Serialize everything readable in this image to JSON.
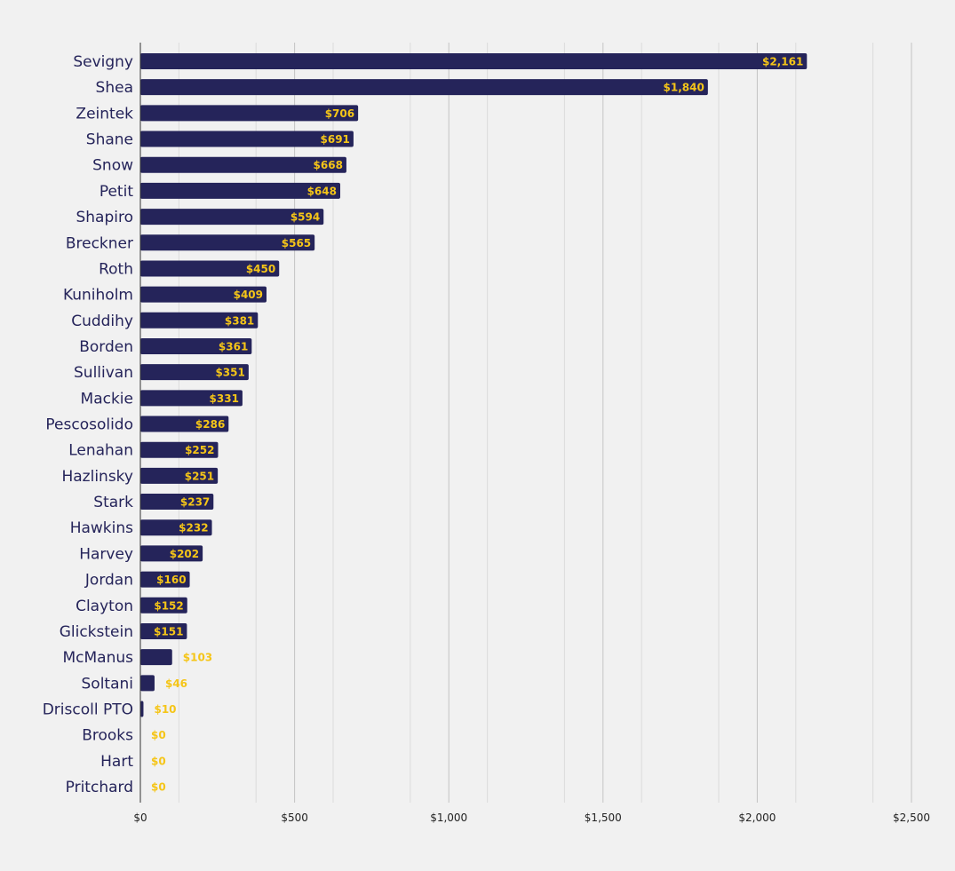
{
  "chart_data": {
    "type": "bar",
    "orientation": "horizontal",
    "categories": [
      "Sevigny",
      "Shea",
      "Zeintek",
      "Shane",
      "Snow",
      "Petit",
      "Shapiro",
      "Breckner",
      "Roth",
      "Kuniholm",
      "Cuddihy",
      "Borden",
      "Sullivan",
      "Mackie",
      "Pescosolido",
      "Lenahan",
      "Hazlinsky",
      "Stark",
      "Hawkins",
      "Harvey",
      "Jordan",
      "Clayton",
      "Glickstein",
      "McManus",
      "Soltani",
      "Driscoll PTO",
      "Brooks",
      "Hart",
      "Pritchard"
    ],
    "values": [
      2161,
      1840,
      706,
      691,
      668,
      648,
      594,
      565,
      450,
      409,
      381,
      361,
      351,
      331,
      286,
      252,
      251,
      237,
      232,
      202,
      160,
      152,
      151,
      103,
      46,
      10,
      0,
      0,
      0
    ],
    "value_labels": [
      "$2,161",
      "$1,840",
      "$706",
      "$691",
      "$668",
      "$648",
      "$594",
      "$565",
      "$450",
      "$409",
      "$381",
      "$361",
      "$351",
      "$331",
      "$286",
      "$252",
      "$251",
      "$237",
      "$232",
      "$202",
      "$160",
      "$152",
      "$151",
      "$103",
      "$46",
      "$10",
      "$0",
      "$0",
      "$0"
    ],
    "xlim": [
      0,
      2500
    ],
    "xticks": [
      0,
      500,
      1000,
      1500,
      2000,
      2500
    ],
    "xtick_labels": [
      "$0",
      "$500",
      "$1,000",
      "$1,500",
      "$2,000",
      "$2,500"
    ],
    "minor_gridlines": true,
    "grid": true,
    "title": "",
    "xlabel": "",
    "ylabel": "",
    "colors": {
      "background": "#f1f1f1",
      "bar": "#25245a",
      "value_label": "#f5c518",
      "category_label": "#25245a",
      "major_grid": "#c4c4c4",
      "minor_grid": "#dcdcdc",
      "axis": "#333333"
    }
  }
}
